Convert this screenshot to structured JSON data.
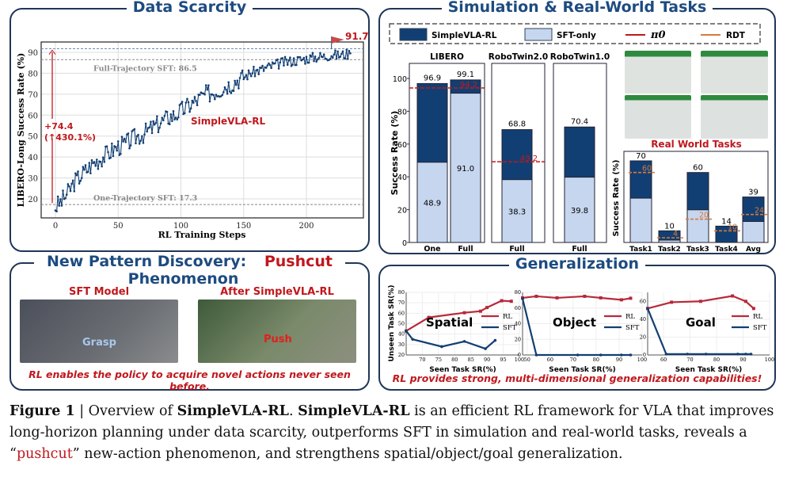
{
  "panels": {
    "data_scarcity": {
      "title": "Data Scarcity"
    },
    "sim_real": {
      "title": "Simulation & Real-World Tasks",
      "real_world_label": "Real World Tasks"
    },
    "pushcut": {
      "title_prefix": "New Pattern Discovery: ",
      "title_highlight": "Pushcut",
      "title_suffix": " Phenomenon",
      "left_label": "SFT Model",
      "right_label": "After SimpleVLA-RL",
      "grasp_label": "Grasp",
      "push_label": "Push",
      "note": "RL enables the policy to acquire novel actions never seen before."
    },
    "generalization": {
      "title": "Generalization",
      "note": "RL provides strong, multi-dimensional generalization capabilities!"
    }
  },
  "colors": {
    "navy": "#123f73",
    "light": "#c6d6ee",
    "red": "#c0181d",
    "orange": "#d97a3a",
    "frame": "#1f3658"
  },
  "caption": {
    "fig": "Figure 1",
    "sep": " | Overview of ",
    "name1": "SimpleVLA-RL",
    "mid1": ". ",
    "name2": "SimpleVLA-RL",
    "text1": " is an efficient RL framework for VLA that improves long-horizon planning under data scarcity, outperforms SFT in simulation and real-world tasks, reveals a “",
    "pushcut": "pushcut",
    "text2": "” new-action phenomenon, and strengthens spatial/object/goal generalization."
  },
  "chart_data": [
    {
      "type": "line",
      "title": "Data Scarcity",
      "xlabel": "RL Training Steps",
      "ylabel": "LIBERO-Long Success Rate (%)",
      "xlim": [
        -12,
        245
      ],
      "ylim": [
        11,
        95
      ],
      "xticks": [
        0,
        50,
        100,
        150,
        200
      ],
      "yticks": [
        20,
        30,
        40,
        50,
        60,
        70,
        80,
        90
      ],
      "series": [
        {
          "name": "SimpleVLA-RL",
          "x": [
            0,
            5,
            10,
            15,
            20,
            25,
            30,
            35,
            40,
            45,
            50,
            55,
            60,
            65,
            70,
            75,
            80,
            85,
            90,
            95,
            100,
            105,
            110,
            115,
            120,
            125,
            130,
            135,
            140,
            145,
            150,
            155,
            160,
            165,
            170,
            175,
            180,
            185,
            190,
            195,
            200,
            205,
            210,
            215,
            220,
            225,
            230,
            235
          ],
          "y": [
            16,
            19,
            23,
            28,
            31,
            34,
            37,
            39,
            41,
            43,
            45,
            46,
            48,
            50,
            51,
            53,
            55,
            57,
            59,
            60,
            62,
            64,
            66,
            68,
            70,
            71,
            72,
            74,
            75,
            77,
            78,
            80,
            81,
            82,
            83,
            84,
            85,
            85.5,
            86,
            86.5,
            87,
            87.5,
            88,
            88,
            89,
            88.5,
            89,
            89.5
          ]
        }
      ],
      "hlines": [
        {
          "label": "Full-Trajectory SFT: 86.5",
          "value": 86.5
        },
        {
          "label": "One-Trajectory SFT: 17.3",
          "value": 17.3
        },
        {
          "label": "91.7",
          "value": 91.7
        }
      ],
      "annotation": {
        "gain": "+74.4",
        "pct": "(↑430.1%)",
        "series_label": "SimpleVLA-RL"
      }
    },
    {
      "type": "bar",
      "stacked": true,
      "ylabel": "Success Rate (%)",
      "ylim": [
        0,
        100
      ],
      "yticks": [
        0,
        20,
        40,
        60,
        80,
        100
      ],
      "legend": [
        "SimpleVLA-RL",
        "SFT-only",
        "π0",
        "RDT"
      ],
      "groups": [
        {
          "name": "LIBERO",
          "bars": [
            {
              "category": "One",
              "sft": 48.9,
              "rl": 96.9
            },
            {
              "category": "Full",
              "sft": 91.0,
              "rl": 99.1
            }
          ],
          "pi0": 94.2
        },
        {
          "name": "RoboTwin2.0",
          "bars": [
            {
              "category": "Full",
              "sft": 38.3,
              "rl": 68.8
            }
          ],
          "pi0": 49.2
        },
        {
          "name": "RoboTwin1.0",
          "bars": [
            {
              "category": "Full",
              "sft": 39.8,
              "rl": 70.4
            }
          ]
        }
      ]
    },
    {
      "type": "bar",
      "stacked": true,
      "title": "Real World Tasks",
      "ylabel": "Success Rate (%)",
      "ylim": [
        0,
        75
      ],
      "categories": [
        "Task1",
        "Task2",
        "Task3",
        "Task4",
        "Avg"
      ],
      "rl": [
        70,
        10,
        60,
        14,
        39
      ],
      "sft": [
        38,
        2,
        28,
        0,
        18
      ],
      "rdt": [
        60,
        4,
        20,
        10,
        24
      ]
    },
    {
      "type": "line",
      "title": "Spatial",
      "xlabel": "Seen Task SR(%)",
      "ylabel": "Unseen Task SR(%)",
      "xlim": [
        65,
        100
      ],
      "ylim": [
        20,
        80
      ],
      "xticks": [
        70,
        75,
        80,
        85,
        90,
        95,
        100
      ],
      "yticks": [
        20,
        30,
        40,
        50,
        60,
        70,
        80
      ],
      "series": [
        {
          "name": "RL",
          "x": [
            65,
            72,
            83,
            88,
            90,
            94.5,
            97.5
          ],
          "y": [
            43,
            56,
            60.5,
            62,
            65.5,
            72,
            71.5
          ]
        },
        {
          "name": "SFT",
          "x": [
            65,
            67,
            76,
            83,
            89.5,
            92.5
          ],
          "y": [
            43,
            35,
            28,
            33,
            26,
            34
          ]
        }
      ]
    },
    {
      "type": "line",
      "title": "Object",
      "xlabel": "Seen Task SR(%)",
      "xlim": [
        48,
        100
      ],
      "ylim": [
        0,
        80
      ],
      "xticks": [
        50,
        60,
        70,
        80,
        90,
        100
      ],
      "yticks": [
        0,
        20,
        40,
        60,
        80
      ],
      "series": [
        {
          "name": "RL",
          "x": [
            48,
            54,
            63,
            75,
            82,
            91,
            95
          ],
          "y": [
            73,
            75,
            73,
            75,
            73,
            70.5,
            72.5
          ]
        },
        {
          "name": "SFT",
          "x": [
            48,
            54,
            72,
            82,
            91,
            95
          ],
          "y": [
            72,
            0,
            0,
            0,
            0,
            0
          ]
        }
      ]
    },
    {
      "type": "line",
      "title": "Goal",
      "xlabel": "Seen Task SR(%)",
      "xlim": [
        54,
        100
      ],
      "ylim": [
        0,
        70
      ],
      "xticks": [
        60,
        70,
        80,
        90,
        100
      ],
      "yticks": [
        0,
        20,
        40,
        60
      ],
      "series": [
        {
          "name": "RL",
          "x": [
            54,
            63,
            74,
            86,
            91,
            94
          ],
          "y": [
            52,
            59,
            60,
            66,
            60,
            52
          ]
        },
        {
          "name": "SFT",
          "x": [
            54,
            61,
            69,
            76,
            88,
            91,
            93
          ],
          "y": [
            52,
            1,
            1,
            1,
            1,
            1,
            1
          ]
        }
      ]
    }
  ]
}
